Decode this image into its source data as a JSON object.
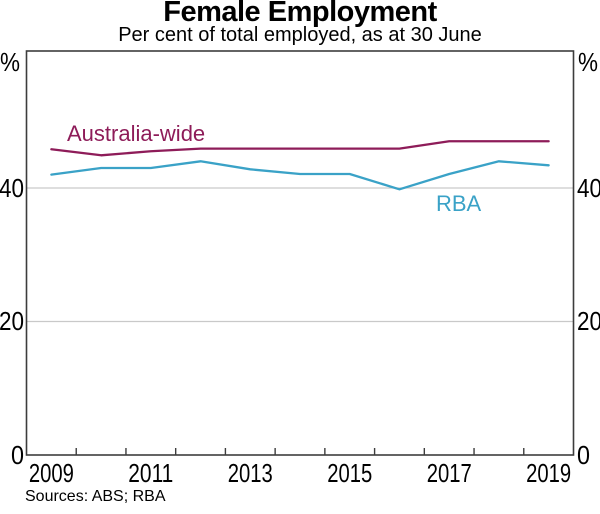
{
  "chart_data": {
    "type": "line",
    "title": "Female Employment",
    "subtitle": "Per cent of total employed, as at 30 June",
    "source_note": "Sources: ABS; RBA",
    "x": [
      2009,
      2010,
      2011,
      2012,
      2013,
      2014,
      2015,
      2016,
      2017,
      2018,
      2019
    ],
    "series": [
      {
        "name": "Australia-wide",
        "color": "#8e1c59",
        "values": [
          45.8,
          44.9,
          45.5,
          45.9,
          45.9,
          45.9,
          45.9,
          45.9,
          47.0,
          47.0,
          47.0
        ]
      },
      {
        "name": "RBA",
        "color": "#3aa2c7",
        "values": [
          42.0,
          43.0,
          43.0,
          44.0,
          42.8,
          42.1,
          42.1,
          39.8,
          42.1,
          44.0,
          43.4
        ]
      }
    ],
    "ylabel": "%",
    "ylim": [
      0,
      60
    ],
    "yticks": [
      0,
      20,
      40
    ],
    "ytick_labels": [
      "0",
      "20",
      "40"
    ],
    "xtick_labels": [
      "2009",
      "2011",
      "2013",
      "2015",
      "2017",
      "2019"
    ],
    "grid": "horizontal gridlines at 20 and 40",
    "legend_position": "inline labels near lines"
  }
}
